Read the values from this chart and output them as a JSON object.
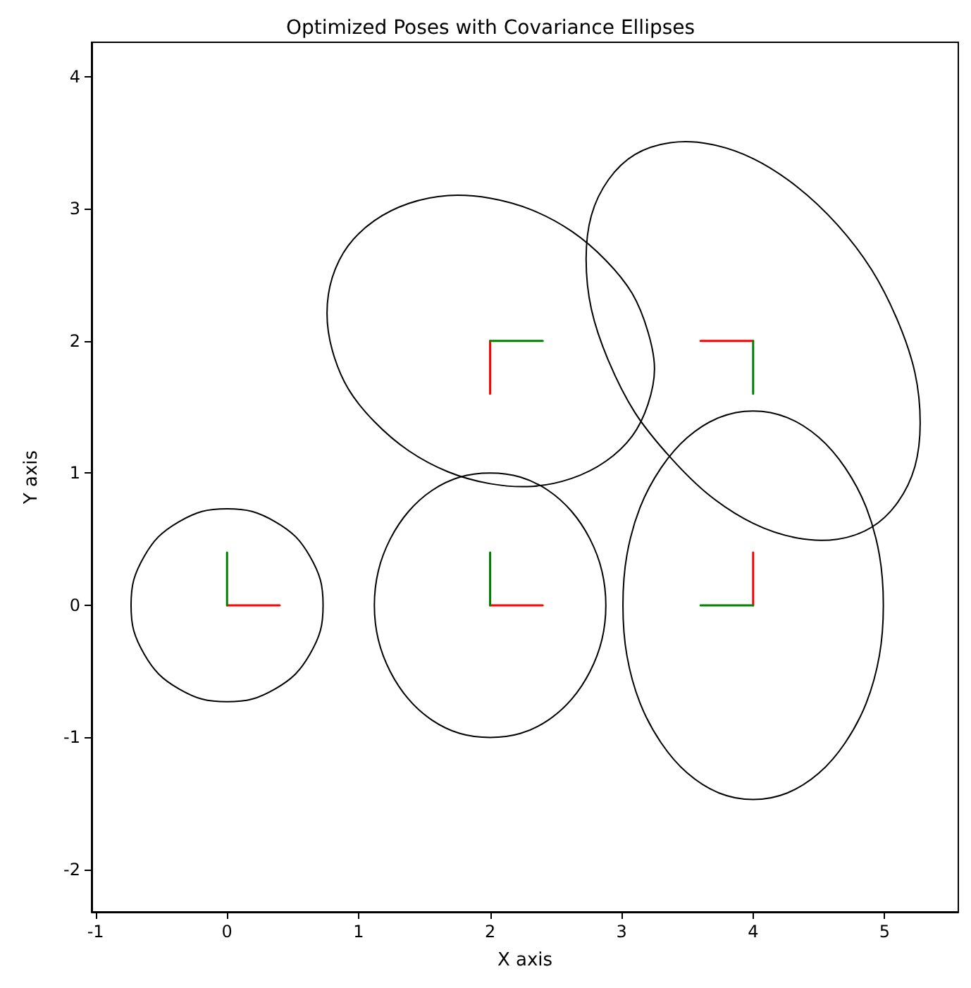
{
  "chart_data": {
    "type": "line",
    "title": "Optimized Poses with Covariance Ellipses",
    "xlabel": "X axis",
    "ylabel": "Y axis",
    "xlim": [
      -1.03,
      5.56
    ],
    "ylim": [
      -2.32,
      4.26
    ],
    "xticks": [
      -1,
      0,
      1,
      2,
      3,
      4,
      5
    ],
    "yticks": [
      -2,
      -1,
      0,
      1,
      2,
      3,
      4
    ],
    "grid": false,
    "marker": "none",
    "line_style": "solid",
    "series": [
      {
        "color": "#ff0000",
        "x": [
          0,
          0.4
        ],
        "values": [
          0,
          0
        ]
      },
      {
        "color": "#008000",
        "x": [
          0,
          0
        ],
        "values": [
          0,
          0.4
        ]
      },
      {
        "color": "#ff0000",
        "x": [
          2,
          2.4
        ],
        "values": [
          0,
          0
        ]
      },
      {
        "color": "#008000",
        "x": [
          2,
          2
        ],
        "values": [
          0,
          0.4
        ]
      },
      {
        "color": "#ff0000",
        "x": [
          4,
          4
        ],
        "values": [
          0,
          0.4
        ]
      },
      {
        "color": "#008000",
        "x": [
          4,
          3.6
        ],
        "values": [
          0,
          0
        ]
      },
      {
        "color": "#ff0000",
        "x": [
          2,
          2
        ],
        "values": [
          2,
          1.6
        ]
      },
      {
        "color": "#008000",
        "x": [
          2,
          2.4
        ],
        "values": [
          2,
          2
        ]
      },
      {
        "color": "#ff0000",
        "x": [
          4,
          3.6
        ],
        "values": [
          2,
          2
        ]
      },
      {
        "color": "#008000",
        "x": [
          4,
          4
        ],
        "values": [
          2,
          1.6
        ]
      }
    ]
  }
}
